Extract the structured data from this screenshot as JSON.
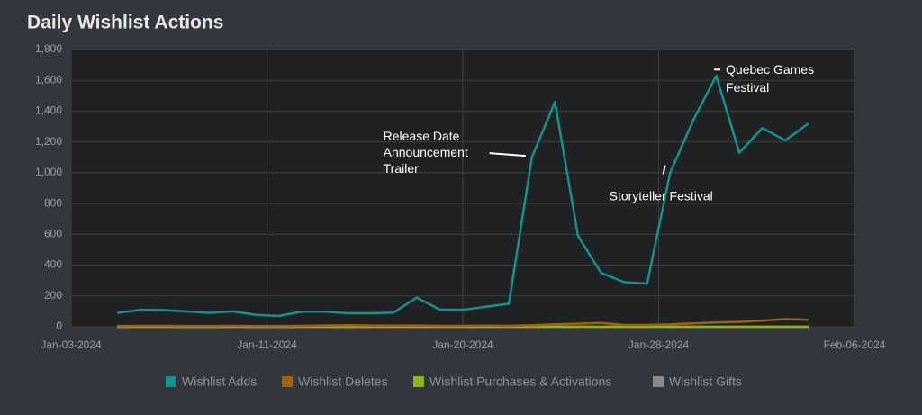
{
  "chart_data": {
    "type": "line",
    "title": "Daily Wishlist Actions",
    "x": [
      2,
      3,
      4,
      5,
      6,
      7,
      8,
      9,
      10,
      11,
      12,
      13,
      14,
      15,
      16,
      17,
      18,
      19,
      20,
      21,
      22,
      23,
      24,
      25,
      26,
      27,
      28,
      29,
      30,
      31,
      32
    ],
    "xlim": [
      0,
      34
    ],
    "xticks": [
      {
        "value": 0,
        "label": "Jan-03-2024"
      },
      {
        "value": 8.5,
        "label": "Jan-11-2024"
      },
      {
        "value": 17,
        "label": "Jan-20-2024"
      },
      {
        "value": 25.5,
        "label": "Jan-28-2024"
      },
      {
        "value": 34,
        "label": "Feb-06-2024"
      }
    ],
    "ylim": [
      0,
      1800
    ],
    "yticks": [
      0,
      200,
      400,
      600,
      800,
      {
        "value": 1000,
        "label": "1,000"
      },
      {
        "value": 1200,
        "label": "1,200"
      },
      {
        "value": 1400,
        "label": "1,400"
      },
      {
        "value": 1600,
        "label": "1,600"
      },
      {
        "value": 1800,
        "label": "1,800"
      }
    ],
    "grid": true,
    "series": [
      {
        "name": "Wishlist Adds",
        "color": "#14938e",
        "values": [
          90,
          110,
          108,
          100,
          90,
          100,
          78,
          70,
          98,
          98,
          88,
          88,
          92,
          190,
          112,
          110,
          130,
          150,
          1100,
          1460,
          590,
          350,
          290,
          280,
          1000,
          1340,
          1630,
          1130,
          1290,
          1210,
          1320
        ]
      },
      {
        "name": "Wishlist Deletes",
        "color": "#a0620d",
        "values": [
          5,
          6,
          6,
          5,
          5,
          6,
          5,
          5,
          6,
          8,
          10,
          8,
          7,
          8,
          6,
          6,
          7,
          6,
          10,
          15,
          20,
          25,
          12,
          12,
          15,
          22,
          28,
          32,
          40,
          50,
          45
        ]
      },
      {
        "name": "Wishlist Purchases & Activations",
        "color": "#8ab418",
        "values": [
          0,
          0,
          0,
          0,
          0,
          0,
          0,
          0,
          0,
          0,
          0,
          0,
          0,
          0,
          0,
          0,
          0,
          0,
          0,
          0,
          0,
          0,
          0,
          0,
          0,
          0,
          0,
          0,
          0,
          0,
          0
        ]
      },
      {
        "name": "Wishlist Gifts",
        "color": "#8a8a8a",
        "values": [
          0,
          0,
          0,
          0,
          0,
          0,
          0,
          0,
          0,
          0,
          0,
          0,
          0,
          0,
          0,
          0,
          0,
          0,
          0,
          0,
          0,
          0,
          0,
          0,
          0,
          0,
          0,
          0,
          0,
          0,
          0
        ]
      }
    ],
    "annotations": [
      {
        "text": [
          "Release Date",
          "Announcement",
          "Trailer"
        ],
        "x": 19.8,
        "y": 1110
      },
      {
        "text": [
          "Storyteller Festival"
        ],
        "x": 25.7,
        "y": 990
      },
      {
        "text": [
          "Quebec Games",
          "Festival"
        ],
        "x": 28.1,
        "y": 1670
      }
    ]
  }
}
